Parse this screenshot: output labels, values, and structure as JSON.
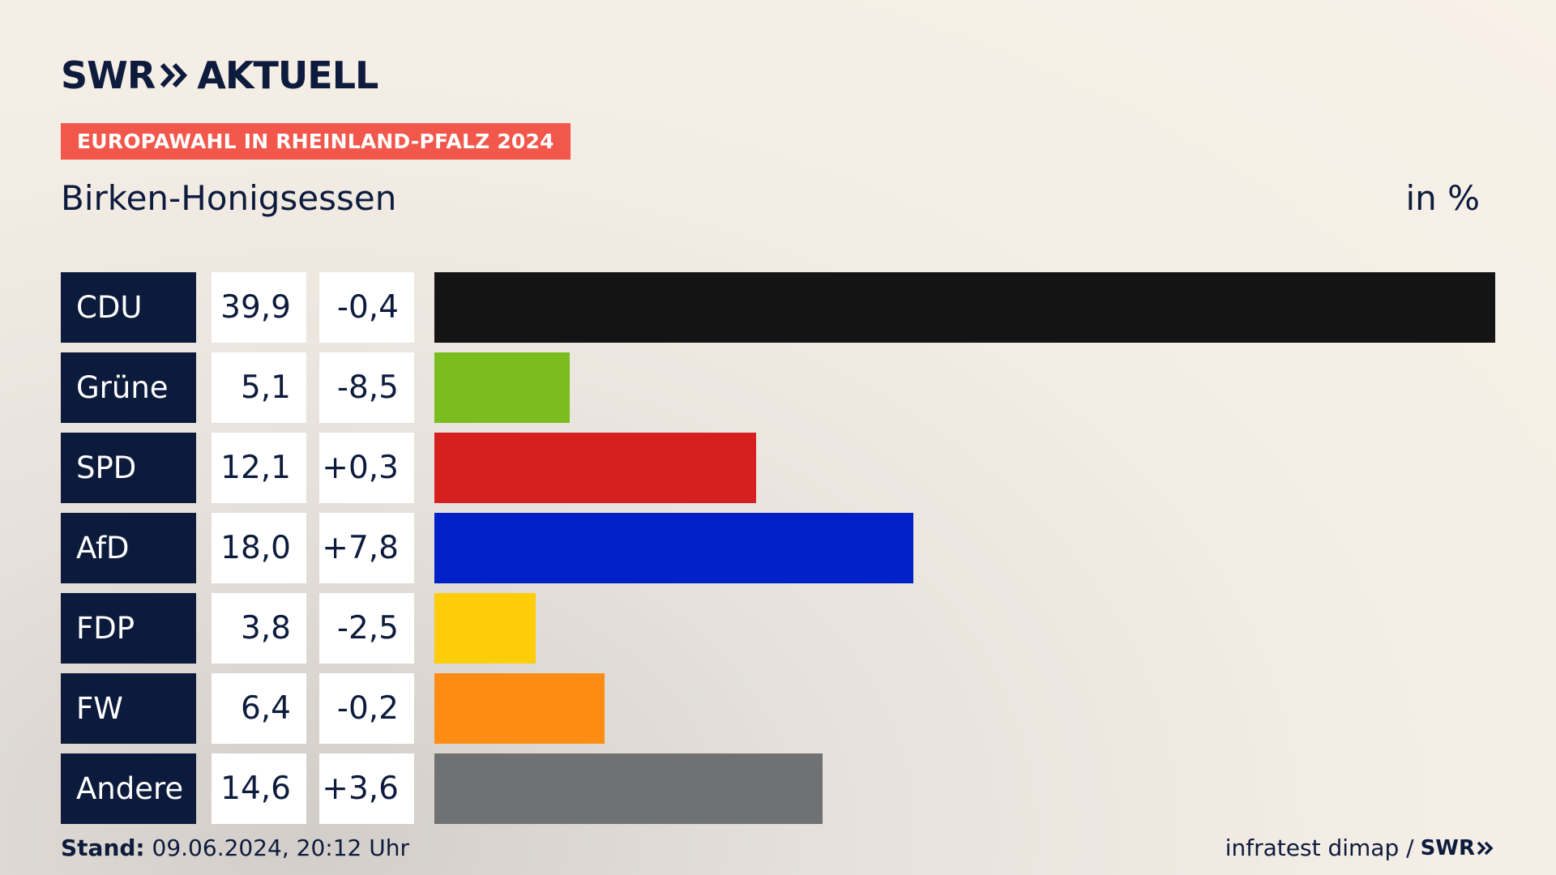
{
  "header": {
    "logo_brand": "SWR",
    "logo_name": "AKTUELL",
    "tag": "EUROPAWAHL IN RHEINLAND-PFALZ 2024",
    "subtitle": "Birken-Honigsessen",
    "unit": "in %"
  },
  "colors": {
    "navy": "#0c1a3c",
    "tag": "#f2574b"
  },
  "chart_data": {
    "type": "bar",
    "orientation": "horizontal",
    "xlim": [
      0,
      39.9
    ],
    "categories": [
      "CDU",
      "Grüne",
      "SPD",
      "AfD",
      "FDP",
      "FW",
      "Andere"
    ],
    "values": [
      39.9,
      5.1,
      12.1,
      18.0,
      3.8,
      6.4,
      14.6
    ],
    "value_labels": [
      "39,9",
      "5,1",
      "12,1",
      "18,0",
      "3,8",
      "6,4",
      "14,6"
    ],
    "diff_labels": [
      "-0,4",
      "-8,5",
      "+0,3",
      "+7,8",
      "-2,5",
      "-0,2",
      "+3,6"
    ],
    "colors": [
      "#141414",
      "#7bbd1f",
      "#d6201f",
      "#0020c8",
      "#fdcd0a",
      "#fd8c15",
      "#707173"
    ]
  },
  "footer": {
    "stand_label": "Stand:",
    "stand_value": "09.06.2024, 20:12 Uhr",
    "source": "infratest dimap /",
    "source_brand": "SWR"
  }
}
